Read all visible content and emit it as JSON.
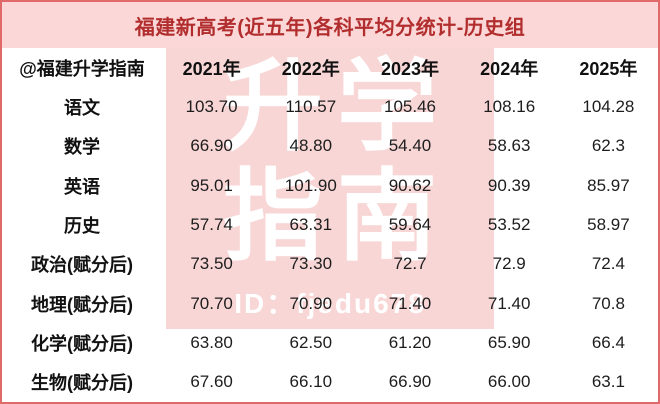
{
  "title": "福建新高考(近五年)各科平均分统计-历史组",
  "table": {
    "header": [
      "@福建升学指南",
      "2021年",
      "2022年",
      "2023年",
      "2024年",
      "2025年"
    ],
    "rows": [
      {
        "subject": "语文",
        "values": [
          "103.70",
          "110.57",
          "105.46",
          "108.16",
          "104.28"
        ]
      },
      {
        "subject": "数学",
        "values": [
          "66.90",
          "48.80",
          "54.40",
          "58.63",
          "62.3"
        ]
      },
      {
        "subject": "英语",
        "values": [
          "95.01",
          "101.90",
          "90.62",
          "90.39",
          "85.97"
        ]
      },
      {
        "subject": "历史",
        "values": [
          "57.74",
          "63.31",
          "59.64",
          "53.52",
          "58.97"
        ]
      },
      {
        "subject": "政治(赋分后)",
        "values": [
          "73.50",
          "73.30",
          "72.7",
          "72.9",
          "72.4"
        ]
      },
      {
        "subject": "地理(赋分后)",
        "values": [
          "70.70",
          "70.90",
          "71.40",
          "71.40",
          "70.8"
        ]
      },
      {
        "subject": "化学(赋分后)",
        "values": [
          "63.80",
          "62.50",
          "61.20",
          "65.90",
          "66.4"
        ]
      },
      {
        "subject": "生物(赋分后)",
        "values": [
          "67.60",
          "66.10",
          "66.90",
          "66.00",
          "63.1"
        ]
      }
    ]
  },
  "watermark": {
    "line1": "升学",
    "line2": "指南",
    "id_text": "ID：fjedu678"
  },
  "colors": {
    "title_bg": "#fbd7d7",
    "title_text": "#b22e2e",
    "watermark_bg": "#f8d6d6",
    "watermark_text": "#ffffff",
    "border": "#e06a6a",
    "text": "#1d1d1d"
  },
  "chart_data": {
    "type": "table",
    "title": "福建新高考(近五年)各科平均分统计-历史组",
    "source_account": "@福建升学指南",
    "categories": [
      "2021年",
      "2022年",
      "2023年",
      "2024年",
      "2025年"
    ],
    "series": [
      {
        "name": "语文",
        "values": [
          103.7,
          110.57,
          105.46,
          108.16,
          104.28
        ]
      },
      {
        "name": "数学",
        "values": [
          66.9,
          48.8,
          54.4,
          58.63,
          62.3
        ]
      },
      {
        "name": "英语",
        "values": [
          95.01,
          101.9,
          90.62,
          90.39,
          85.97
        ]
      },
      {
        "name": "历史",
        "values": [
          57.74,
          63.31,
          59.64,
          53.52,
          58.97
        ]
      },
      {
        "name": "政治(赋分后)",
        "values": [
          73.5,
          73.3,
          72.7,
          72.9,
          72.4
        ]
      },
      {
        "name": "地理(赋分后)",
        "values": [
          70.7,
          70.9,
          71.4,
          71.4,
          70.8
        ]
      },
      {
        "name": "化学(赋分后)",
        "values": [
          63.8,
          62.5,
          61.2,
          65.9,
          66.4
        ]
      },
      {
        "name": "生物(赋分后)",
        "values": [
          67.6,
          66.1,
          66.9,
          66.0,
          63.1
        ]
      }
    ]
  }
}
